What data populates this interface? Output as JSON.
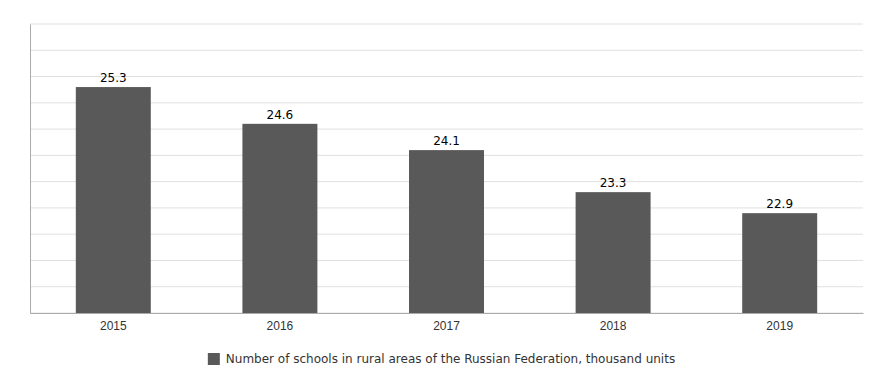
{
  "chart_data": {
    "type": "bar",
    "categories": [
      "2015",
      "2016",
      "2017",
      "2018",
      "2019"
    ],
    "series": [
      {
        "name": "Number of schools in rural areas of the Russian Federation, thousand units",
        "color": "#595959",
        "values": [
          25.3,
          24.6,
          24.1,
          23.3,
          22.9
        ]
      }
    ],
    "ylim": [
      21.0,
      26.5
    ],
    "yticks": [
      21.0,
      21.5,
      22.0,
      22.5,
      23.0,
      23.5,
      24.0,
      24.5,
      25.0,
      25.5,
      26.0,
      26.5
    ],
    "grid": true,
    "data_labels": true,
    "tick_labels": "x",
    "legend": "bottom"
  }
}
